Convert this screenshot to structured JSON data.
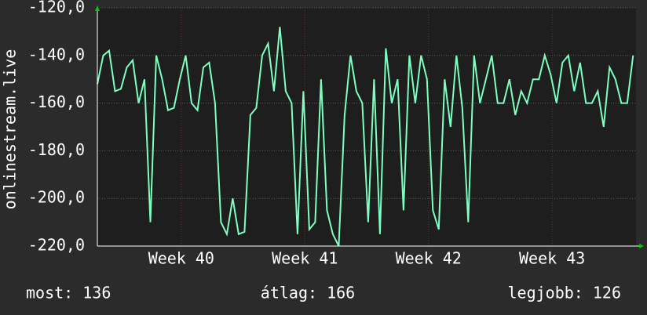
{
  "chart_data": {
    "type": "line",
    "ylabel": "onlinestream.live",
    "x": [
      0,
      8,
      16,
      24,
      32,
      40,
      48,
      56,
      64,
      72,
      80,
      88,
      96,
      104,
      112,
      120,
      128,
      136,
      144,
      152,
      160,
      168,
      176,
      184,
      192,
      200,
      208,
      216,
      224,
      232,
      240,
      248,
      256,
      264,
      272,
      280,
      288,
      296,
      304,
      312,
      320,
      328,
      336,
      344,
      352,
      360,
      368,
      376,
      384,
      392,
      400,
      408,
      416,
      424,
      432,
      440,
      448,
      456,
      464,
      472,
      480,
      488,
      496,
      504,
      512,
      520,
      528,
      536,
      544,
      552,
      560,
      568,
      576,
      584,
      592,
      600,
      608,
      616,
      624,
      632,
      640,
      648,
      656,
      664,
      672,
      680,
      688,
      696,
      704,
      712,
      720,
      728
    ],
    "series": [
      {
        "name": "onlinestream.live",
        "color": "#7dffc0",
        "values": [
          -152,
          -140,
          -138,
          -155,
          -154,
          -145,
          -142,
          -160,
          -150,
          -210,
          -140,
          -150,
          -163,
          -162,
          -150,
          -140,
          -160,
          -163,
          -145,
          -143,
          -160,
          -210,
          -215,
          -200,
          -215,
          -214,
          -165,
          -162,
          -140,
          -135,
          -155,
          -128,
          -155,
          -160,
          -215,
          -155,
          -213,
          -210,
          -150,
          -205,
          -215,
          -220,
          -165,
          -140,
          -155,
          -160,
          -210,
          -150,
          -215,
          -137,
          -160,
          -150,
          -205,
          -140,
          -160,
          -140,
          -150,
          -205,
          -213,
          -150,
          -170,
          -140,
          -162,
          -210,
          -140,
          -160,
          -150,
          -140,
          -160,
          -160,
          -150,
          -165,
          -155,
          -160,
          -150,
          -150,
          -140,
          -148,
          -160,
          -143,
          -140,
          -155,
          -143,
          -160,
          -160,
          -155,
          -170,
          -145,
          -150,
          -160,
          -160,
          -140
        ]
      }
    ],
    "xlim": [
      0,
      732
    ],
    "xticks": [
      {
        "value": 114,
        "label": "Week 40"
      },
      {
        "value": 282,
        "label": "Week 41"
      },
      {
        "value": 450,
        "label": "Week 42"
      },
      {
        "value": 618,
        "label": "Week 43"
      }
    ],
    "ylim": [
      -220,
      -120
    ],
    "yticks": [
      {
        "value": -220,
        "label": "-220,0"
      },
      {
        "value": -200,
        "label": "-200,0"
      },
      {
        "value": -180,
        "label": "-180,0"
      },
      {
        "value": -160,
        "label": "-160,0"
      },
      {
        "value": -140,
        "label": "-140,0"
      },
      {
        "value": -120,
        "label": "-120,0"
      }
    ],
    "grid": true,
    "annotations": [
      "most: 136",
      "átlag: 166",
      "legjobb: 126"
    ]
  }
}
